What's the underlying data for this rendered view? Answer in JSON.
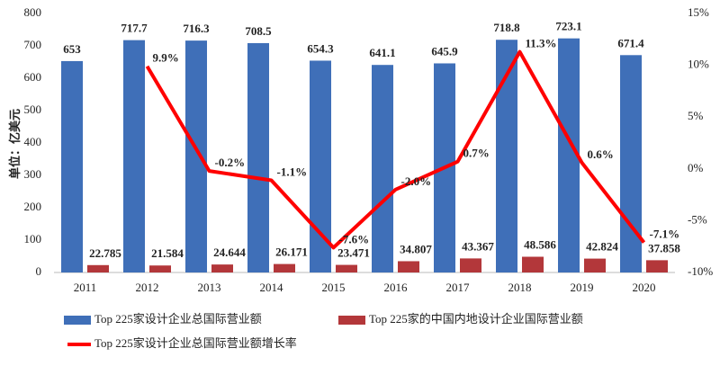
{
  "chart_data": {
    "type": "bar",
    "y_label": "单位：亿美元",
    "categories": [
      "2011",
      "2012",
      "2013",
      "2014",
      "2015",
      "2016",
      "2017",
      "2018",
      "2019",
      "2020"
    ],
    "series": [
      {
        "name": "Top 225家设计企业总国际营业额",
        "color": "#3f6fb8",
        "values": [
          653,
          717.7,
          716.3,
          708.5,
          654.3,
          641.1,
          645.9,
          718.8,
          723.1,
          671.4
        ]
      },
      {
        "name": "Top 225家的中国内地设计企业国际营业额",
        "color": "#b3373a",
        "values": [
          22.785,
          21.584,
          24.644,
          26.171,
          23.471,
          34.807,
          43.367,
          48.586,
          42.824,
          37.858
        ]
      },
      {
        "name": "Top 225家设计企业总国际营业额增长率",
        "color": "#ff0000",
        "type": "line",
        "axis": "y2",
        "values": [
          null,
          9.9,
          -0.2,
          -1.1,
          -7.6,
          -2.0,
          0.7,
          11.3,
          0.6,
          -7.1
        ],
        "value_labels": [
          null,
          "9.9%",
          "-0.2%",
          "-1.1%",
          "-7.6%",
          "-2.0%",
          "0.7%",
          "11.3%",
          "0.6%",
          "-7.1%"
        ]
      }
    ],
    "ylim": [
      0,
      800
    ],
    "yticks": [
      0,
      100,
      200,
      300,
      400,
      500,
      600,
      700,
      800
    ],
    "y2lim": [
      -10,
      15
    ],
    "y2ticks": [
      {
        "value": -10,
        "label": "-10%"
      },
      {
        "value": -5,
        "label": "-5%"
      },
      {
        "value": 0,
        "label": "0%"
      },
      {
        "value": 5,
        "label": "5%"
      },
      {
        "value": 10,
        "label": "10%"
      },
      {
        "value": 15,
        "label": "15%"
      }
    ],
    "grid": false
  }
}
